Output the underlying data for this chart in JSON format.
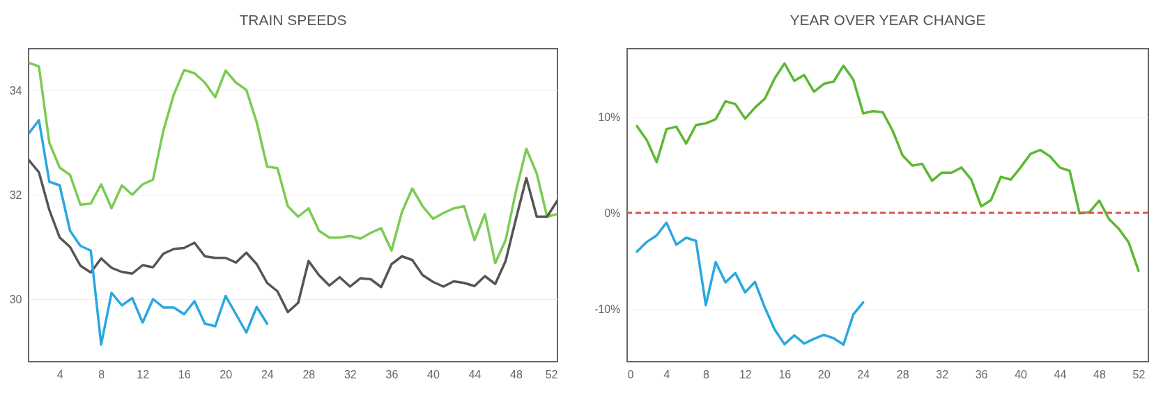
{
  "chart_data": [
    {
      "type": "line",
      "title": "TRAIN SPEEDS",
      "x": [
        1,
        2,
        3,
        4,
        5,
        6,
        7,
        8,
        9,
        10,
        11,
        12,
        13,
        14,
        15,
        16,
        17,
        18,
        19,
        20,
        21,
        22,
        23,
        24,
        25,
        26,
        27,
        28,
        29,
        30,
        31,
        32,
        33,
        34,
        35,
        36,
        37,
        38,
        39,
        40,
        41,
        42,
        43,
        44,
        45,
        46,
        47,
        48,
        49,
        50,
        51,
        52
      ],
      "xlim": [
        1,
        52
      ],
      "xticks": [
        4,
        8,
        12,
        16,
        20,
        24,
        28,
        32,
        36,
        40,
        44,
        48,
        52
      ],
      "ylim": [
        28.8,
        34.8
      ],
      "yticks": [
        30,
        32,
        34
      ],
      "grid": "y",
      "series": [
        {
          "color": "#7acc52",
          "values": [
            34.53,
            34.46,
            33.0,
            32.52,
            32.38,
            31.81,
            31.83,
            32.2,
            31.74,
            32.18,
            32.0,
            32.2,
            32.29,
            33.23,
            33.92,
            34.39,
            34.33,
            34.15,
            33.87,
            34.38,
            34.15,
            34.01,
            33.39,
            32.54,
            32.51,
            31.78,
            31.58,
            31.74,
            31.31,
            31.18,
            31.18,
            31.21,
            31.16,
            31.27,
            31.36,
            30.93,
            31.67,
            32.12,
            31.78,
            31.54,
            31.65,
            31.74,
            31.78,
            31.13,
            31.63,
            30.69,
            31.13,
            32.07,
            32.88,
            32.41,
            31.58,
            31.63
          ]
        },
        {
          "color": "#555555",
          "values": [
            32.67,
            32.43,
            31.71,
            31.18,
            31.0,
            30.64,
            30.51,
            30.78,
            30.6,
            30.52,
            30.49,
            30.65,
            30.61,
            30.87,
            30.96,
            30.98,
            31.08,
            30.82,
            30.79,
            30.79,
            30.7,
            30.89,
            30.67,
            30.31,
            30.15,
            29.75,
            29.93,
            30.73,
            30.46,
            30.26,
            30.42,
            30.24,
            30.4,
            30.38,
            30.23,
            30.67,
            30.82,
            30.75,
            30.46,
            30.33,
            30.24,
            30.34,
            30.31,
            30.25,
            30.44,
            30.29,
            30.73,
            31.54,
            32.32,
            31.58,
            31.58,
            31.89
          ]
        },
        {
          "color": "#29a8e0",
          "x": [
            1,
            2,
            3,
            4,
            5,
            6,
            7,
            8,
            9,
            10,
            11,
            12,
            13,
            14,
            15,
            16,
            17,
            18,
            19,
            20,
            21,
            22,
            23,
            24
          ],
          "values": [
            33.17,
            33.43,
            32.25,
            32.18,
            31.31,
            31.02,
            30.93,
            29.13,
            30.12,
            29.88,
            30.02,
            29.55,
            30.0,
            29.84,
            29.84,
            29.71,
            29.96,
            29.53,
            29.48,
            30.06,
            29.71,
            29.36,
            29.85,
            29.53
          ]
        }
      ]
    },
    {
      "type": "line",
      "title": "YEAR OVER YEAR CHANGE",
      "x": [
        1,
        2,
        3,
        4,
        5,
        6,
        7,
        8,
        9,
        10,
        11,
        12,
        13,
        14,
        15,
        16,
        17,
        18,
        19,
        20,
        21,
        22,
        23,
        24,
        25,
        26,
        27,
        28,
        29,
        30,
        31,
        32,
        33,
        34,
        35,
        36,
        37,
        38,
        39,
        40,
        41,
        42,
        43,
        44,
        45,
        46,
        47,
        48,
        49,
        50,
        51,
        52
      ],
      "xlim": [
        0,
        53
      ],
      "xticks": [
        0,
        4,
        8,
        12,
        16,
        20,
        24,
        28,
        32,
        36,
        40,
        44,
        48,
        52
      ],
      "ylim": [
        -15.5,
        17.1
      ],
      "yticks": [
        {
          "value": -10,
          "label": "-10%"
        },
        {
          "value": 0,
          "label": "0%"
        },
        {
          "value": 10,
          "label": "10%"
        }
      ],
      "grid": "y",
      "ref_lines": [
        {
          "axis": "y",
          "value": 0,
          "color": "#d9534f",
          "line_style": "dashed"
        }
      ],
      "series": [
        {
          "color": "#5cb832",
          "values": [
            9.03,
            7.58,
            5.28,
            8.72,
            8.98,
            7.22,
            9.15,
            9.32,
            9.76,
            11.62,
            11.33,
            9.81,
            10.97,
            11.89,
            14.0,
            15.57,
            13.75,
            14.36,
            12.62,
            13.44,
            13.68,
            15.33,
            13.87,
            10.36,
            10.6,
            10.48,
            8.55,
            6.0,
            4.92,
            5.11,
            3.34,
            4.19,
            4.19,
            4.72,
            3.46,
            0.68,
            1.33,
            3.75,
            3.46,
            4.72,
            6.13,
            6.56,
            5.88,
            4.72,
            4.38,
            -0.05,
            0.07,
            1.28,
            -0.65,
            -1.67,
            -3.08,
            -6.03
          ]
        },
        {
          "color": "#29a8e0",
          "x": [
            1,
            2,
            3,
            4,
            5,
            6,
            7,
            8,
            9,
            10,
            11,
            12,
            13,
            14,
            15,
            16,
            17,
            18,
            19,
            20,
            21,
            22,
            23,
            24
          ],
          "values": [
            -4.04,
            -3.03,
            -2.35,
            -1.02,
            -3.32,
            -2.59,
            -2.91,
            -9.61,
            -5.13,
            -7.24,
            -6.27,
            -8.28,
            -7.19,
            -9.85,
            -12.15,
            -13.68,
            -12.76,
            -13.61,
            -13.12,
            -12.71,
            -13.05,
            -13.73,
            -10.58,
            -9.32
          ]
        }
      ]
    }
  ]
}
